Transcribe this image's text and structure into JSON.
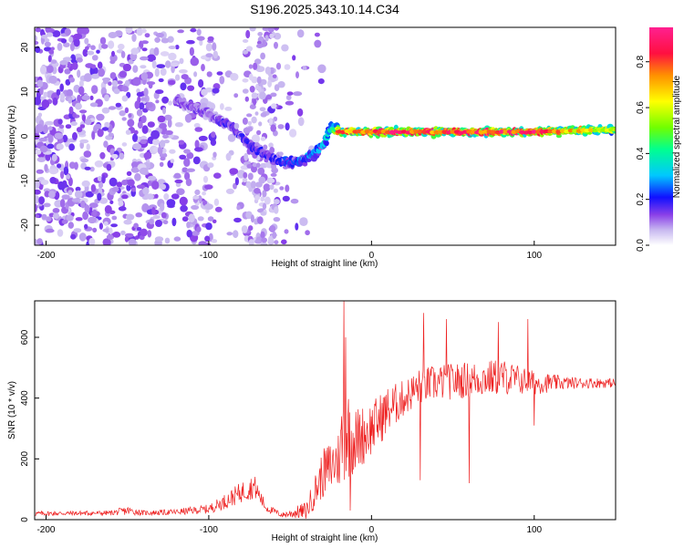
{
  "title": "S196.2025.343.10.14.C34",
  "chart_data": [
    {
      "type": "heatmap",
      "title": "S196.2025.343.10.14.C34",
      "xlabel": "Height of straight line (km)",
      "ylabel": "Frequency (Hz)",
      "xlim": [
        -207,
        150
      ],
      "ylim": [
        -24.5,
        24.5
      ],
      "xticks": [
        -200,
        -100,
        0,
        100
      ],
      "xtick_labels": [
        "-200",
        "-100",
        "0",
        "100"
      ],
      "yticks": [
        -20,
        -10,
        0,
        10,
        20
      ],
      "ytick_labels": [
        "-20",
        "-10",
        "0",
        "10",
        "20"
      ],
      "colorbar": {
        "label": "Normalized spectral amplitude",
        "range": [
          0.0,
          0.95
        ],
        "ticks": [
          0.0,
          0.2,
          0.4,
          0.6,
          0.8
        ],
        "tick_labels": [
          "0.0",
          "0.2",
          "0.4",
          "0.6",
          "0.8"
        ],
        "colormap": [
          "#ffffff",
          "#b090f0",
          "#7020e0",
          "#1010ff",
          "#00c8ff",
          "#00ff90",
          "#80ff00",
          "#ffff00",
          "#ff9000",
          "#ff1040",
          "#ff2080"
        ]
      },
      "ridge": {
        "description_points_x": [
          -120,
          -100,
          -85,
          -75,
          -60,
          -50,
          -40,
          -30,
          -25,
          -20,
          0,
          50,
          100,
          150
        ],
        "frequency_hz": [
          8,
          5,
          2,
          -2,
          -5,
          -6,
          -5,
          -2,
          2,
          1,
          1,
          1,
          1,
          1.5
        ],
        "peak_amplitude": [
          0.15,
          0.15,
          0.2,
          0.2,
          0.2,
          0.25,
          0.3,
          0.35,
          0.4,
          0.85,
          0.9,
          0.9,
          0.9,
          0.6
        ]
      }
    },
    {
      "type": "line",
      "xlabel": "Height of straight line (km)",
      "ylabel": "SNR (10 * v/v)",
      "xlim": [
        -207,
        150
      ],
      "ylim": [
        0,
        720
      ],
      "xticks": [
        -200,
        -100,
        0,
        100
      ],
      "xtick_labels": [
        "-200",
        "-100",
        "0",
        "100"
      ],
      "yticks": [
        0,
        200,
        400,
        600
      ],
      "ytick_labels": [
        "0",
        "200",
        "400",
        "600"
      ],
      "series": [
        {
          "name": "SNR",
          "color": "#ee2222",
          "envelope_x": [
            -207,
            -160,
            -150,
            -140,
            -120,
            -100,
            -90,
            -80,
            -72,
            -65,
            -55,
            -40,
            -30,
            -20,
            -17,
            -10,
            0,
            10,
            20,
            30,
            40,
            60,
            80,
            100,
            120,
            150
          ],
          "envelope_mean": [
            20,
            22,
            30,
            22,
            25,
            35,
            60,
            90,
            110,
            40,
            15,
            30,
            150,
            200,
            300,
            260,
            300,
            360,
            400,
            440,
            450,
            460,
            470,
            450,
            450,
            450
          ],
          "envelope_spread": [
            8,
            8,
            15,
            8,
            10,
            15,
            25,
            35,
            40,
            15,
            8,
            30,
            80,
            100,
            180,
            110,
            90,
            80,
            60,
            60,
            60,
            60,
            60,
            40,
            20,
            15
          ],
          "spikes": [
            {
              "x": -17,
              "y": 720
            },
            {
              "x": -16,
              "y": 600
            },
            {
              "x": -13,
              "y": 30
            },
            {
              "x": 32,
              "y": 680
            },
            {
              "x": 30,
              "y": 130
            },
            {
              "x": 46,
              "y": 660
            },
            {
              "x": 60,
              "y": 120
            },
            {
              "x": 78,
              "y": 650
            },
            {
              "x": 96,
              "y": 660
            },
            {
              "x": 100,
              "y": 310
            }
          ]
        }
      ]
    }
  ]
}
